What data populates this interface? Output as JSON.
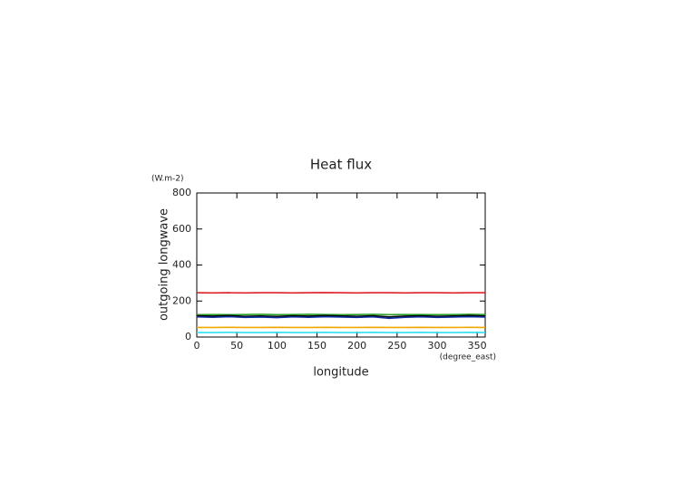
{
  "chart_data": {
    "type": "line",
    "title": "Heat flux",
    "xlabel": "longitude",
    "xunit": "(degree_east)",
    "ylabel": "outgoing longwave",
    "yunit": "(W.m-2)",
    "x": [
      0,
      20,
      40,
      60,
      80,
      100,
      120,
      140,
      160,
      180,
      200,
      220,
      240,
      260,
      280,
      300,
      320,
      340,
      360
    ],
    "series": [
      {
        "color": "#e0202a",
        "values": [
          246,
          245,
          246,
          245,
          246,
          246,
          245,
          246,
          247,
          246,
          245,
          246,
          246,
          245,
          246,
          246,
          245,
          246,
          246
        ]
      },
      {
        "color": "#2ca02c",
        "values": [
          124,
          125,
          124,
          125,
          126,
          124,
          125,
          126,
          125,
          124,
          125,
          126,
          124,
          125,
          125,
          124,
          125,
          126,
          125
        ]
      },
      {
        "color": "#000000",
        "values": [
          118,
          116,
          119,
          115,
          117,
          114,
          118,
          116,
          119,
          117,
          115,
          118,
          112,
          116,
          118,
          115,
          117,
          119,
          117
        ]
      },
      {
        "color": "#1030a0",
        "values": [
          112,
          110,
          113,
          109,
          111,
          108,
          112,
          110,
          113,
          111,
          109,
          112,
          104,
          110,
          112,
          109,
          111,
          113,
          111
        ]
      },
      {
        "color": "#f0a800",
        "values": [
          53,
          53,
          54,
          53,
          53,
          54,
          53,
          53,
          54,
          53,
          53,
          54,
          53,
          53,
          54,
          53,
          53,
          54,
          53
        ]
      },
      {
        "color": "#30e0f0",
        "values": [
          25,
          25,
          26,
          25,
          25,
          26,
          25,
          25,
          26,
          25,
          25,
          26,
          25,
          25,
          26,
          25,
          25,
          26,
          25
        ]
      }
    ],
    "xlim": [
      0,
      360
    ],
    "xticks": [
      0,
      50,
      100,
      150,
      200,
      250,
      300,
      350
    ],
    "ylim": [
      0,
      800
    ],
    "yticks": [
      0,
      200,
      400,
      600,
      800
    ]
  }
}
